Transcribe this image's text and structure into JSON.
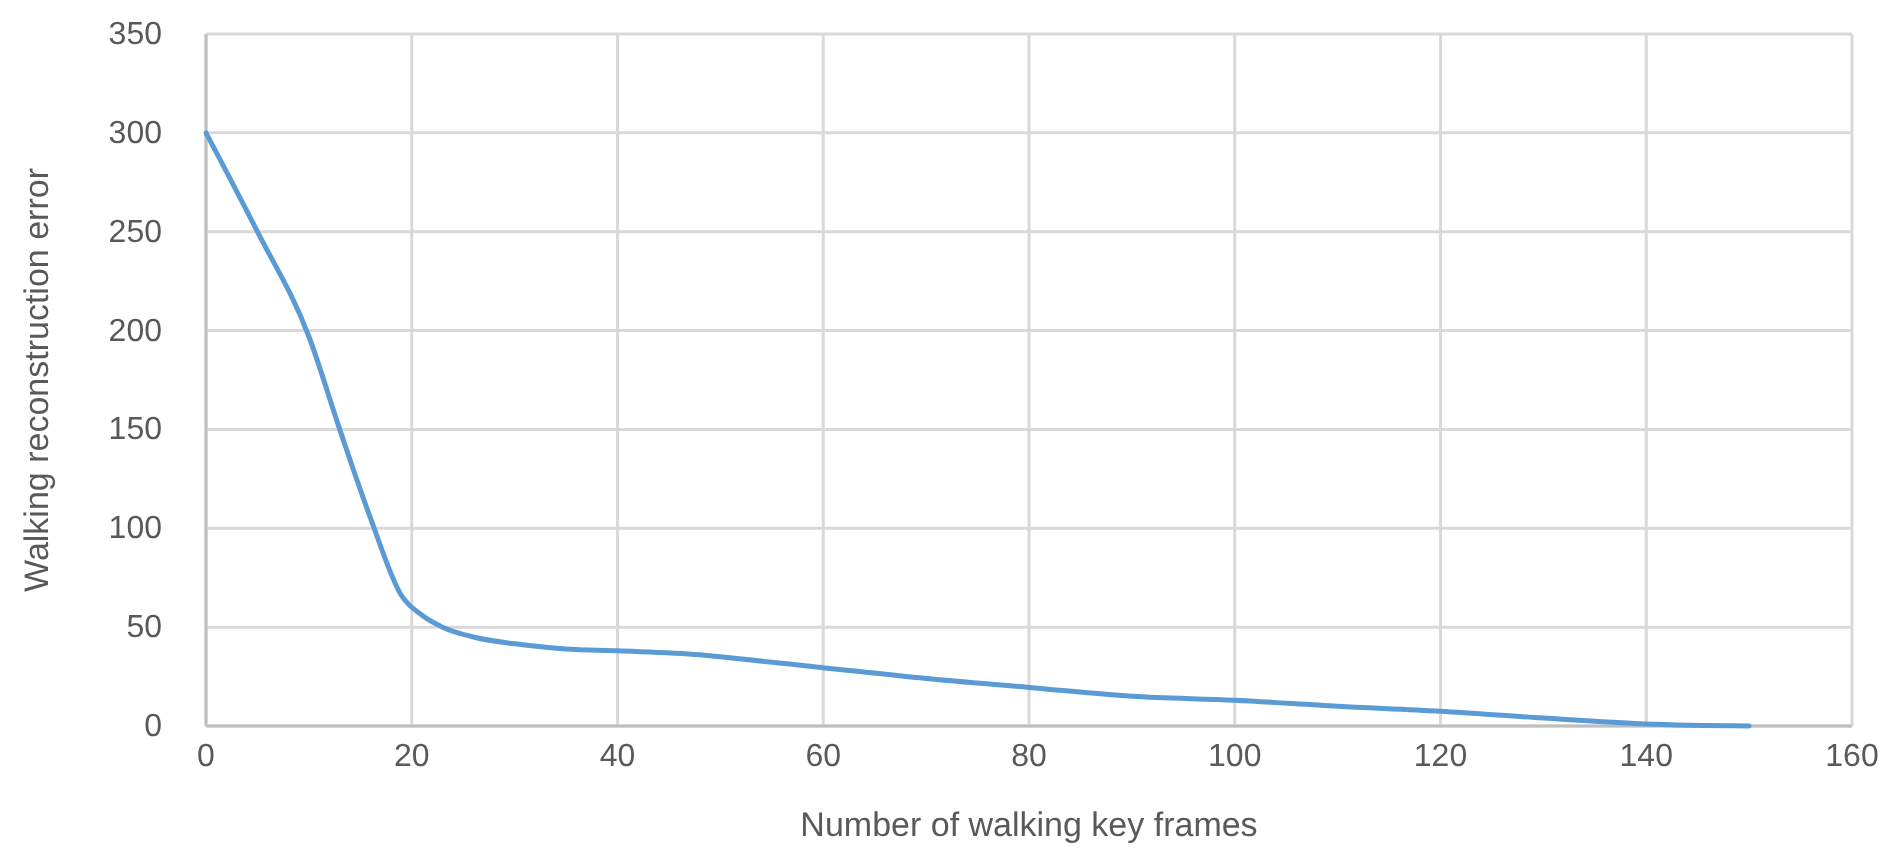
{
  "chart_data": {
    "type": "line",
    "xlabel": "Number of walking key frames",
    "ylabel": "Walking reconstruction error",
    "xlim": [
      0,
      160
    ],
    "xticks": [
      0,
      20,
      40,
      60,
      80,
      100,
      120,
      140,
      160
    ],
    "ylim": [
      0,
      350
    ],
    "yticks": [
      0,
      50,
      100,
      150,
      200,
      250,
      300,
      350
    ],
    "grid": true,
    "series": [
      {
        "color": "#5b9bd5",
        "x": [
          0,
          5,
          10,
          13,
          16,
          19,
          21,
          23,
          26,
          31,
          35,
          40,
          48,
          50,
          60,
          70,
          80,
          90,
          100,
          110,
          120,
          130,
          140,
          150
        ],
        "values": [
          300,
          250,
          197,
          150,
          105,
          66,
          56,
          50,
          45,
          41,
          39,
          38,
          36,
          35,
          29.5,
          24,
          19.5,
          15,
          13,
          10,
          7.5,
          4,
          1,
          0
        ]
      }
    ]
  }
}
